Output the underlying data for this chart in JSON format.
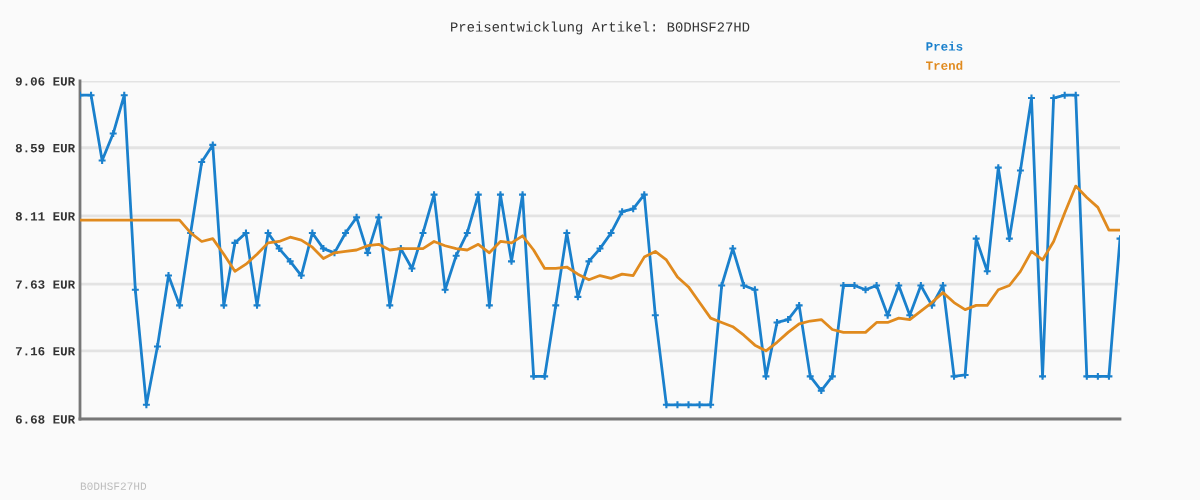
{
  "chart_data": {
    "type": "line",
    "title": "Preisentwicklung Artikel: B0DHSF27HD",
    "categories": [
      null,
      null,
      null,
      null,
      null,
      null,
      null,
      null,
      null,
      null,
      null,
      null,
      null,
      null,
      null,
      null,
      null,
      null,
      null,
      null,
      null,
      null,
      null,
      null,
      null,
      null,
      null,
      null,
      null,
      null,
      null,
      null,
      null,
      null,
      null,
      null,
      null,
      null,
      null,
      null,
      null,
      null,
      null,
      null,
      null,
      null,
      null,
      null,
      null,
      null,
      null,
      null,
      null,
      null,
      null,
      null,
      null,
      null,
      null,
      null,
      null,
      null,
      null,
      null,
      null,
      null,
      null,
      null,
      null,
      null,
      null,
      null,
      null,
      null,
      null,
      null,
      null,
      null,
      null,
      null,
      null,
      null,
      null,
      null,
      null,
      null,
      null,
      null,
      null,
      null,
      null,
      null,
      null,
      null,
      null
    ],
    "series": [
      {
        "name": "Preis",
        "color": "#1a80cc",
        "marker": "cross",
        "values": [
          8.96,
          8.96,
          8.5,
          8.69,
          8.96,
          7.59,
          6.78,
          7.19,
          7.69,
          7.48,
          7.99,
          8.49,
          8.61,
          7.48,
          7.92,
          7.99,
          7.48,
          7.99,
          7.88,
          7.79,
          7.69,
          7.99,
          7.88,
          7.85,
          7.99,
          8.1,
          7.85,
          8.1,
          7.48,
          7.88,
          7.74,
          7.99,
          8.26,
          7.59,
          7.83,
          7.99,
          8.26,
          7.48,
          8.26,
          7.79,
          8.26,
          6.98,
          6.98,
          7.48,
          7.99,
          7.54,
          7.79,
          7.88,
          7.99,
          8.14,
          8.16,
          8.26,
          7.41,
          6.78,
          6.78,
          6.78,
          6.78,
          6.78,
          7.62,
          7.88,
          7.62,
          7.59,
          6.98,
          7.36,
          7.38,
          7.48,
          6.98,
          6.88,
          6.98,
          7.62,
          7.62,
          7.59,
          7.62,
          7.41,
          7.62,
          7.41,
          7.62,
          7.48,
          7.62,
          6.98,
          6.99,
          7.95,
          7.72,
          8.45,
          7.95,
          8.43,
          8.94,
          6.98,
          8.94,
          8.96,
          8.96,
          6.98,
          6.98,
          6.98,
          7.95
        ]
      },
      {
        "name": "Trend",
        "color": "#e08a1e",
        "marker": "none",
        "values": [
          8.08,
          8.08,
          8.08,
          8.08,
          8.08,
          8.08,
          8.08,
          8.08,
          8.08,
          8.08,
          7.99,
          7.93,
          7.95,
          7.84,
          7.72,
          7.77,
          7.84,
          7.92,
          7.93,
          7.96,
          7.94,
          7.89,
          7.81,
          7.85,
          7.86,
          7.87,
          7.9,
          7.91,
          7.87,
          7.88,
          7.88,
          7.88,
          7.93,
          7.9,
          7.88,
          7.87,
          7.91,
          7.85,
          7.93,
          7.92,
          7.97,
          7.87,
          7.74,
          7.74,
          7.75,
          7.7,
          7.66,
          7.69,
          7.67,
          7.7,
          7.69,
          7.82,
          7.86,
          7.8,
          7.68,
          7.61,
          7.5,
          7.39,
          7.36,
          7.33,
          7.27,
          7.2,
          7.16,
          7.22,
          7.29,
          7.35,
          7.37,
          7.38,
          7.31,
          7.29,
          7.29,
          7.29,
          7.36,
          7.36,
          7.39,
          7.38,
          7.44,
          7.5,
          7.57,
          7.5,
          7.45,
          7.48,
          7.48,
          7.59,
          7.62,
          7.72,
          7.86,
          7.8,
          7.93,
          8.13,
          8.32,
          8.24,
          8.17,
          8.01,
          8.01
        ]
      }
    ],
    "ylim": [
      6.68,
      9.06
    ],
    "yticks": [
      {
        "value": 6.68,
        "label": "6.68 EUR"
      },
      {
        "value": 7.16,
        "label": "7.16 EUR"
      },
      {
        "value": 7.63,
        "label": "7.63 EUR"
      },
      {
        "value": 8.11,
        "label": "8.11 EUR"
      },
      {
        "value": 8.59,
        "label": "8.59 EUR"
      },
      {
        "value": 9.06,
        "label": "9.06 EUR"
      }
    ],
    "grid": "y",
    "legend": "top right",
    "line_style": "solid",
    "annotations": [
      "B0DHSF27HD"
    ]
  }
}
